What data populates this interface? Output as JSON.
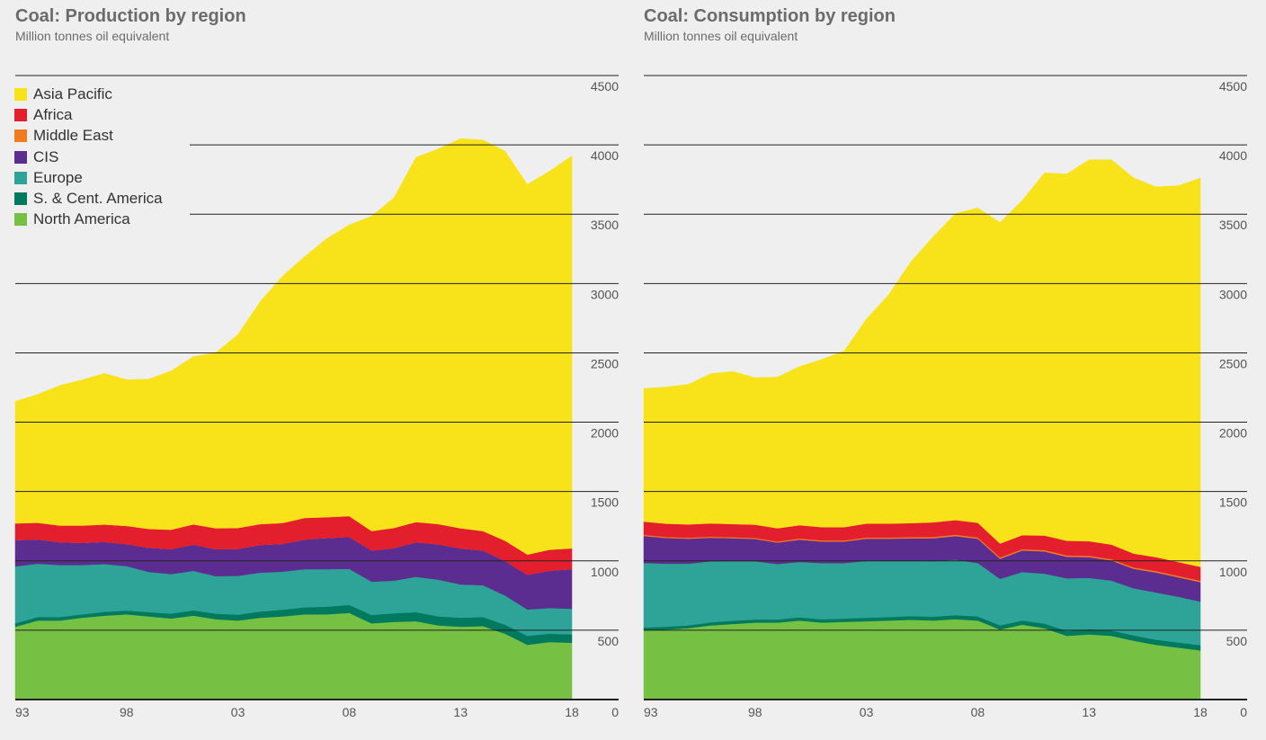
{
  "chart_data": [
    {
      "type": "area",
      "stacked": true,
      "title": "Coal: Production by region",
      "subtitle": "Million tonnes oil equivalent",
      "ylim": [
        0,
        4500
      ],
      "y_ticks": [
        0,
        500,
        1000,
        1500,
        2000,
        2500,
        3000,
        3500,
        4000,
        4500
      ],
      "x_tick_labels": [
        "93",
        "98",
        "03",
        "08",
        "13",
        "18"
      ],
      "legend": "top-left",
      "grid": true,
      "x": [
        1993,
        1994,
        1995,
        1996,
        1997,
        1998,
        1999,
        2000,
        2001,
        2002,
        2003,
        2004,
        2005,
        2006,
        2007,
        2008,
        2009,
        2010,
        2011,
        2012,
        2013,
        2014,
        2015,
        2016,
        2017,
        2018
      ],
      "series": [
        {
          "name": "North America",
          "color": "#76c043",
          "values": [
            525,
            570,
            570,
            590,
            605,
            615,
            600,
            585,
            605,
            580,
            570,
            590,
            600,
            615,
            615,
            625,
            550,
            560,
            565,
            535,
            525,
            530,
            475,
            395,
            415,
            410
          ]
        },
        {
          "name": "S. & Cent. America",
          "color": "#007a5e",
          "values": [
            25,
            25,
            25,
            25,
            27,
            27,
            30,
            35,
            38,
            40,
            42,
            45,
            48,
            50,
            55,
            58,
            60,
            62,
            65,
            65,
            65,
            65,
            65,
            65,
            60,
            60
          ]
        },
        {
          "name": "Europe",
          "color": "#2ea397",
          "values": [
            410,
            385,
            375,
            355,
            345,
            320,
            290,
            285,
            285,
            270,
            280,
            280,
            275,
            275,
            270,
            260,
            240,
            235,
            255,
            265,
            240,
            230,
            210,
            190,
            185,
            185
          ]
        },
        {
          "name": "CIS",
          "color": "#5c2d91",
          "values": [
            190,
            175,
            165,
            160,
            160,
            160,
            175,
            180,
            190,
            195,
            195,
            200,
            200,
            215,
            225,
            230,
            225,
            235,
            250,
            255,
            260,
            250,
            250,
            250,
            270,
            285
          ]
        },
        {
          "name": "Middle East",
          "color": "#f07c22",
          "values": [
            0,
            0,
            0,
            0,
            0,
            0,
            0,
            0,
            0,
            0,
            0,
            0,
            0,
            0,
            0,
            0,
            0,
            0,
            0,
            0,
            0,
            0,
            0,
            0,
            0,
            0
          ]
        },
        {
          "name": "Africa",
          "color": "#e31e2d",
          "values": [
            120,
            120,
            120,
            125,
            125,
            130,
            135,
            140,
            145,
            150,
            150,
            150,
            150,
            155,
            150,
            150,
            140,
            145,
            145,
            145,
            145,
            140,
            145,
            145,
            150,
            150
          ]
        },
        {
          "name": "Asia Pacific",
          "color": "#f8e31a",
          "values": [
            880,
            925,
            1010,
            1050,
            1090,
            1055,
            1080,
            1145,
            1210,
            1265,
            1395,
            1605,
            1780,
            1885,
            2010,
            2100,
            2270,
            2380,
            2630,
            2705,
            2810,
            2820,
            2810,
            2670,
            2730,
            2830
          ]
        }
      ]
    },
    {
      "type": "area",
      "stacked": true,
      "title": "Coal: Consumption by region",
      "subtitle": "Million tonnes oil equivalent",
      "ylim": [
        0,
        4500
      ],
      "y_ticks": [
        0,
        500,
        1000,
        1500,
        2000,
        2500,
        3000,
        3500,
        4000,
        4500
      ],
      "x_tick_labels": [
        "93",
        "98",
        "03",
        "08",
        "13",
        "18"
      ],
      "grid": true,
      "x": [
        1993,
        1994,
        1995,
        1996,
        1997,
        1998,
        1999,
        2000,
        2001,
        2002,
        2003,
        2004,
        2005,
        2006,
        2007,
        2008,
        2009,
        2010,
        2011,
        2012,
        2013,
        2014,
        2015,
        2016,
        2017,
        2018
      ],
      "series": [
        {
          "name": "North America",
          "color": "#76c043",
          "values": [
            500,
            505,
            515,
            535,
            545,
            555,
            555,
            570,
            555,
            560,
            565,
            570,
            575,
            570,
            580,
            570,
            505,
            540,
            515,
            460,
            470,
            460,
            425,
            395,
            375,
            355
          ]
        },
        {
          "name": "S. & Cent. America",
          "color": "#007a5e",
          "values": [
            20,
            20,
            20,
            22,
            23,
            23,
            22,
            23,
            24,
            24,
            25,
            25,
            27,
            28,
            29,
            30,
            30,
            30,
            33,
            35,
            37,
            38,
            38,
            37,
            37,
            37
          ]
        },
        {
          "name": "Europe",
          "color": "#2ea397",
          "values": [
            465,
            455,
            445,
            440,
            430,
            420,
            400,
            400,
            405,
            400,
            410,
            405,
            400,
            400,
            400,
            385,
            335,
            350,
            360,
            380,
            370,
            360,
            340,
            340,
            330,
            315
          ]
        },
        {
          "name": "CIS",
          "color": "#5c2d91",
          "values": [
            195,
            185,
            180,
            170,
            165,
            160,
            155,
            160,
            155,
            155,
            160,
            160,
            160,
            165,
            170,
            175,
            145,
            155,
            160,
            155,
            150,
            145,
            140,
            145,
            140,
            140
          ]
        },
        {
          "name": "Middle East",
          "color": "#f07c22",
          "values": [
            8,
            8,
            8,
            8,
            8,
            8,
            8,
            9,
            9,
            9,
            9,
            9,
            10,
            10,
            10,
            10,
            10,
            10,
            10,
            10,
            10,
            10,
            10,
            10,
            10,
            10
          ]
        },
        {
          "name": "Africa",
          "color": "#e31e2d",
          "values": [
            95,
            95,
            95,
            95,
            95,
            95,
            95,
            95,
            95,
            95,
            100,
            100,
            100,
            105,
            105,
            105,
            100,
            100,
            105,
            105,
            105,
            105,
            100,
            100,
            100,
            100
          ]
        },
        {
          "name": "Asia Pacific",
          "color": "#f8e31a",
          "values": [
            960,
            985,
            1010,
            1080,
            1100,
            1060,
            1090,
            1145,
            1210,
            1270,
            1475,
            1650,
            1885,
            2060,
            2210,
            2270,
            2315,
            2415,
            2615,
            2645,
            2750,
            2775,
            2710,
            2670,
            2713,
            2803
          ]
        }
      ]
    }
  ]
}
